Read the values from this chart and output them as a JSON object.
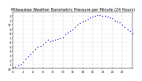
{
  "title": "Milwaukee Weather Barometric Pressure per Minute (24 Hours)",
  "title_fontsize": 3.5,
  "dot_color": "#0000cc",
  "dot_size": 0.8,
  "background_color": "#ffffff",
  "xlim": [
    0,
    1440
  ],
  "ylim": [
    29.0,
    30.3
  ],
  "ytick_positions": [
    29.0,
    29.1,
    29.2,
    29.3,
    29.4,
    29.5,
    29.6,
    29.7,
    29.8,
    29.9,
    30.0,
    30.1,
    30.2
  ],
  "ytick_labels": [
    "29",
    ".1",
    ".2",
    ".3",
    ".4",
    ".5",
    ".6",
    ".7",
    ".8",
    ".9",
    "30",
    ".1",
    ".2"
  ],
  "xtick_positions": [
    0,
    120,
    240,
    360,
    480,
    600,
    720,
    840,
    960,
    1080,
    1200,
    1320,
    1440
  ],
  "xtick_labels": [
    "0",
    "2",
    "4",
    "6",
    "8",
    "10",
    "12",
    "14",
    "16",
    "18",
    "20",
    "22",
    ""
  ],
  "vgrid_positions": [
    120,
    240,
    360,
    480,
    600,
    720,
    840,
    960,
    1080,
    1200,
    1320
  ],
  "data_x": [
    0,
    30,
    60,
    90,
    120,
    150,
    180,
    210,
    240,
    270,
    300,
    330,
    360,
    390,
    420,
    450,
    480,
    510,
    540,
    570,
    600,
    630,
    660,
    690,
    720,
    750,
    780,
    810,
    840,
    870,
    900,
    930,
    960,
    990,
    1020,
    1050,
    1080,
    1110,
    1140,
    1170,
    1200,
    1230,
    1260,
    1290,
    1320,
    1350,
    1380,
    1410,
    1440
  ],
  "data_y": [
    29.02,
    29.04,
    29.07,
    29.1,
    29.15,
    29.22,
    29.28,
    29.33,
    29.38,
    29.44,
    29.5,
    29.52,
    29.55,
    29.6,
    29.65,
    29.62,
    29.63,
    29.65,
    29.67,
    29.7,
    29.72,
    29.78,
    29.82,
    29.85,
    29.9,
    29.95,
    30.0,
    30.03,
    30.07,
    30.1,
    30.13,
    30.16,
    30.18,
    30.2,
    30.22,
    30.22,
    30.21,
    30.2,
    30.18,
    30.17,
    30.15,
    30.1,
    30.08,
    30.05,
    30.0,
    29.95,
    29.9,
    29.85,
    29.8
  ]
}
